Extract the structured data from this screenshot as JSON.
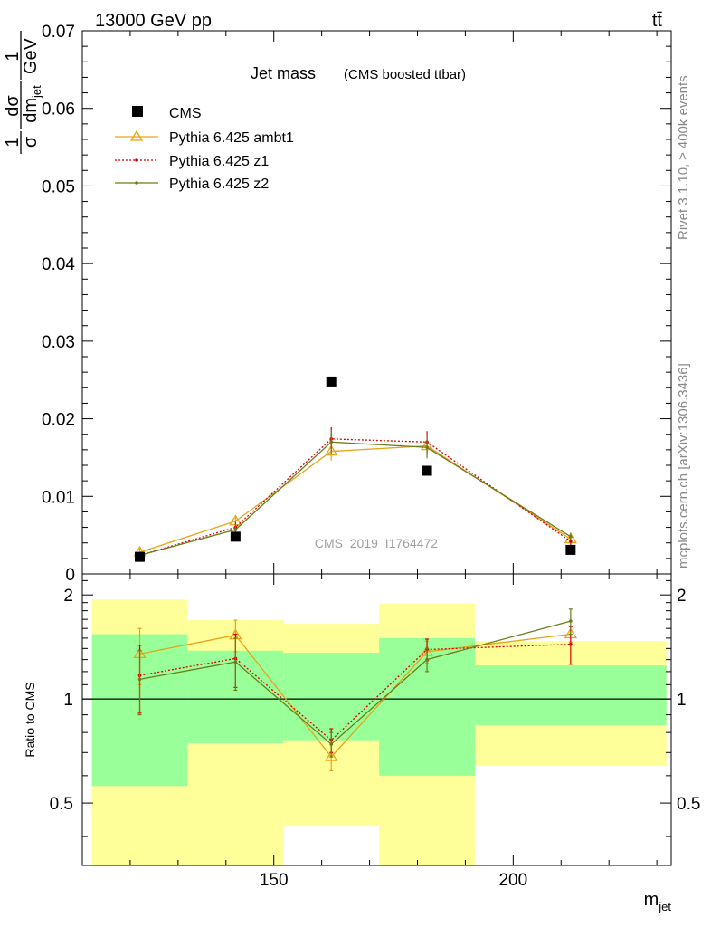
{
  "header": {
    "energy_label": "13000 GeV pp",
    "process_label": "tt̄"
  },
  "side_labels": {
    "rivet": "Rivet 3.1.10, ≥ 400k events",
    "mcplots": "mcplots.cern.ch [arXiv:1306.3436]"
  },
  "watermark": "CMS_2019_I1764472",
  "chart_data": [
    {
      "type": "scatter",
      "title": "Jet mass",
      "subtitle": "(CMS boosted ttbar)",
      "ylabel": "1/σ dσ/dm_jet  1/GeV",
      "ylim": [
        0,
        0.07
      ],
      "yticks": [
        0,
        0.01,
        0.02,
        0.03,
        0.04,
        0.05,
        0.06,
        0.07
      ],
      "ytick_labels": [
        "0",
        "0.01",
        "0.02",
        "0.03",
        "0.04",
        "0.05",
        "0.06",
        "0.07"
      ],
      "xlim": [
        110,
        233
      ],
      "legend_position": "top-left",
      "x": [
        122,
        142,
        162,
        182,
        212
      ],
      "x_edges": [
        112,
        132,
        152,
        172,
        192,
        232
      ],
      "series": [
        {
          "name": "CMS",
          "color": "#000000",
          "marker": "square",
          "values": [
            0.0022,
            0.0048,
            0.0248,
            0.0133,
            0.0031
          ]
        },
        {
          "name": "Pythia 6.425 ambt1",
          "color": "#e8a317",
          "marker": "triangle",
          "line": "solid",
          "values": [
            0.0028,
            0.0068,
            0.0158,
            0.0165,
            0.0045
          ],
          "errors": [
            0.0005,
            0.0008,
            0.0012,
            0.0012,
            0.0005
          ]
        },
        {
          "name": "Pythia 6.425 z1",
          "color": "#dd0000",
          "marker": "dot",
          "line": "dotted",
          "values": [
            0.0024,
            0.006,
            0.0174,
            0.017,
            0.0042
          ],
          "errors": [
            0.0004,
            0.0007,
            0.0015,
            0.0014,
            0.0005
          ]
        },
        {
          "name": "Pythia 6.425 z2",
          "color": "#6b7d1a",
          "marker": "dot",
          "line": "solid",
          "values": [
            0.0024,
            0.0057,
            0.017,
            0.0163,
            0.0048
          ],
          "errors": [
            0.0004,
            0.0007,
            0.0015,
            0.0014,
            0.0005
          ]
        }
      ]
    },
    {
      "type": "line",
      "ylabel": "Ratio to CMS",
      "xlabel": "m_jet",
      "ylim": [
        0.33,
        2.3
      ],
      "yticks": [
        0.5,
        1,
        2
      ],
      "ytick_labels": [
        "0.5",
        "1",
        "2"
      ],
      "xlim": [
        110,
        233
      ],
      "xticks": [
        150,
        200
      ],
      "xtick_labels": [
        "150",
        "200"
      ],
      "bands": {
        "edges": [
          112,
          132,
          152,
          172,
          192,
          232
        ],
        "green_low": [
          0.56,
          0.745,
          0.76,
          0.6,
          0.84
        ],
        "green_high": [
          1.54,
          1.38,
          1.36,
          1.5,
          1.25
        ],
        "yellow_low": [
          0.33,
          0.33,
          0.43,
          0.33,
          0.64
        ],
        "yellow_high": [
          1.94,
          1.69,
          1.65,
          1.89,
          1.47
        ],
        "green_color": "#99ff99",
        "yellow_color": "#ffff99"
      },
      "series": [
        {
          "name": "Pythia 6.425 ambt1",
          "color": "#e8a317",
          "line": "solid",
          "values": [
            1.35,
            1.53,
            0.68,
            1.37,
            1.54
          ],
          "errors": [
            0.25,
            0.16,
            0.06,
            0.1,
            0.08
          ]
        },
        {
          "name": "Pythia 6.425 z1",
          "color": "#dd0000",
          "line": "dotted",
          "values": [
            1.17,
            1.31,
            0.76,
            1.39,
            1.44
          ],
          "errors": [
            0.26,
            0.23,
            0.06,
            0.1,
            0.18
          ]
        },
        {
          "name": "Pythia 6.425 z2",
          "color": "#6b7d1a",
          "line": "solid",
          "values": [
            1.14,
            1.28,
            0.74,
            1.3,
            1.68
          ],
          "errors": [
            0.24,
            0.22,
            0.06,
            0.1,
            0.14
          ]
        }
      ]
    }
  ]
}
